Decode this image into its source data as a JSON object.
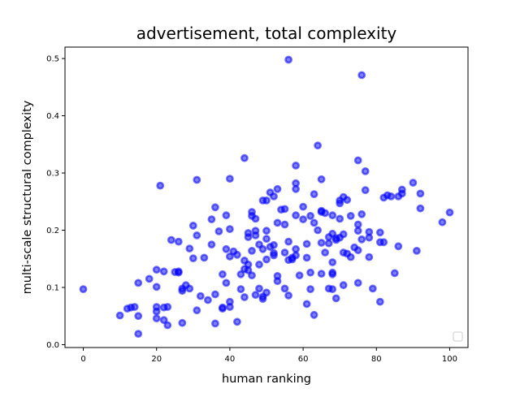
{
  "chart_data": {
    "type": "scatter",
    "title": "advertisement, total complexity",
    "xlabel": "human ranking",
    "ylabel": "multi-scale structural complexity",
    "xlim": [
      -5,
      105
    ],
    "ylim": [
      -0.005,
      0.52
    ],
    "x_ticks": [
      0,
      20,
      40,
      60,
      80,
      100
    ],
    "y_ticks": [
      0.0,
      0.1,
      0.2,
      0.3,
      0.4,
      0.5
    ],
    "x_tick_labels": [
      "0",
      "20",
      "40",
      "60",
      "80",
      "100"
    ],
    "y_tick_labels": [
      "0.0",
      "0.1",
      "0.2",
      "0.3",
      "0.4",
      "0.5"
    ],
    "grid": false,
    "legend": "empty box, bottom-right",
    "marker_color": "#0000ff",
    "points": [
      [
        0,
        0.097
      ],
      [
        10,
        0.051
      ],
      [
        12,
        0.063
      ],
      [
        13,
        0.065
      ],
      [
        14,
        0.066
      ],
      [
        15,
        0.05
      ],
      [
        15,
        0.019
      ],
      [
        15,
        0.108
      ],
      [
        18,
        0.115
      ],
      [
        20,
        0.131
      ],
      [
        20,
        0.101
      ],
      [
        20,
        0.066
      ],
      [
        20,
        0.058
      ],
      [
        20,
        0.046
      ],
      [
        21,
        0.278
      ],
      [
        22,
        0.128
      ],
      [
        22,
        0.043
      ],
      [
        22,
        0.065
      ],
      [
        23,
        0.034
      ],
      [
        23,
        0.066
      ],
      [
        24,
        0.183
      ],
      [
        25,
        0.127
      ],
      [
        26,
        0.128
      ],
      [
        26,
        0.126
      ],
      [
        26,
        0.18
      ],
      [
        27,
        0.098
      ],
      [
        27,
        0.038
      ],
      [
        27,
        0.094
      ],
      [
        28,
        0.104
      ],
      [
        29,
        0.098
      ],
      [
        29,
        0.168
      ],
      [
        30,
        0.208
      ],
      [
        30,
        0.151
      ],
      [
        31,
        0.191
      ],
      [
        31,
        0.288
      ],
      [
        31,
        0.06
      ],
      [
        32,
        0.085
      ],
      [
        33,
        0.152
      ],
      [
        34,
        0.078
      ],
      [
        35,
        0.175
      ],
      [
        35,
        0.219
      ],
      [
        36,
        0.24
      ],
      [
        36,
        0.088
      ],
      [
        36,
        0.037
      ],
      [
        37,
        0.198
      ],
      [
        38,
        0.123
      ],
      [
        38,
        0.065
      ],
      [
        38,
        0.063
      ],
      [
        39,
        0.226
      ],
      [
        39,
        0.108
      ],
      [
        39,
        0.167
      ],
      [
        40,
        0.29
      ],
      [
        40,
        0.154
      ],
      [
        40,
        0.066
      ],
      [
        40,
        0.075
      ],
      [
        40,
        0.202
      ],
      [
        41,
        0.163
      ],
      [
        42,
        0.04
      ],
      [
        42,
        0.157
      ],
      [
        43,
        0.097
      ],
      [
        43,
        0.123
      ],
      [
        44,
        0.326
      ],
      [
        44,
        0.132
      ],
      [
        44,
        0.083
      ],
      [
        44,
        0.147
      ],
      [
        45,
        0.195
      ],
      [
        45,
        0.188
      ],
      [
        45,
        0.14
      ],
      [
        45,
        0.13
      ],
      [
        46,
        0.232
      ],
      [
        46,
        0.225
      ],
      [
        46,
        0.164
      ],
      [
        46,
        0.121
      ],
      [
        47,
        0.22
      ],
      [
        47,
        0.199
      ],
      [
        47,
        0.191
      ],
      [
        47,
        0.087
      ],
      [
        48,
        0.175
      ],
      [
        48,
        0.098
      ],
      [
        48,
        0.14
      ],
      [
        49,
        0.252
      ],
      [
        49,
        0.084
      ],
      [
        49,
        0.08
      ],
      [
        49,
        0.167
      ],
      [
        50,
        0.252
      ],
      [
        50,
        0.199
      ],
      [
        50,
        0.185
      ],
      [
        50,
        0.149
      ],
      [
        50,
        0.091
      ],
      [
        51,
        0.266
      ],
      [
        51,
        0.171
      ],
      [
        52,
        0.259
      ],
      [
        52,
        0.174
      ],
      [
        52,
        0.16
      ],
      [
        52,
        0.156
      ],
      [
        53,
        0.213
      ],
      [
        53,
        0.272
      ],
      [
        53,
        0.12
      ],
      [
        53,
        0.111
      ],
      [
        54,
        0.236
      ],
      [
        55,
        0.237
      ],
      [
        55,
        0.21
      ],
      [
        55,
        0.161
      ],
      [
        55,
        0.098
      ],
      [
        56,
        0.498
      ],
      [
        56,
        0.18
      ],
      [
        56,
        0.148
      ],
      [
        56,
        0.086
      ],
      [
        57,
        0.152
      ],
      [
        57,
        0.149
      ],
      [
        58,
        0.313
      ],
      [
        58,
        0.282
      ],
      [
        58,
        0.272
      ],
      [
        58,
        0.226
      ],
      [
        58,
        0.167
      ],
      [
        58,
        0.156
      ],
      [
        59,
        0.121
      ],
      [
        60,
        0.241
      ],
      [
        60,
        0.219
      ],
      [
        61,
        0.176
      ],
      [
        61,
        0.152
      ],
      [
        61,
        0.071
      ],
      [
        62,
        0.225
      ],
      [
        62,
        0.126
      ],
      [
        62,
        0.097
      ],
      [
        63,
        0.263
      ],
      [
        63,
        0.213
      ],
      [
        63,
        0.052
      ],
      [
        64,
        0.348
      ],
      [
        64,
        0.2
      ],
      [
        65,
        0.289
      ],
      [
        65,
        0.234
      ],
      [
        65,
        0.232
      ],
      [
        65,
        0.178
      ],
      [
        65,
        0.124
      ],
      [
        66,
        0.23
      ],
      [
        66,
        0.161
      ],
      [
        67,
        0.188
      ],
      [
        67,
        0.177
      ],
      [
        67,
        0.098
      ],
      [
        68,
        0.226
      ],
      [
        68,
        0.194
      ],
      [
        68,
        0.144
      ],
      [
        68,
        0.126
      ],
      [
        68,
        0.123
      ],
      [
        68,
        0.097
      ],
      [
        69,
        0.183
      ],
      [
        69,
        0.186
      ],
      [
        69,
        0.081
      ],
      [
        70,
        0.252
      ],
      [
        70,
        0.247
      ],
      [
        70,
        0.22
      ],
      [
        70,
        0.187
      ],
      [
        71,
        0.258
      ],
      [
        71,
        0.193
      ],
      [
        71,
        0.161
      ],
      [
        71,
        0.104
      ],
      [
        72,
        0.253
      ],
      [
        72,
        0.159
      ],
      [
        73,
        0.225
      ],
      [
        73,
        0.153
      ],
      [
        74,
        0.17
      ],
      [
        75,
        0.322
      ],
      [
        75,
        0.21
      ],
      [
        75,
        0.199
      ],
      [
        75,
        0.165
      ],
      [
        75,
        0.108
      ],
      [
        76,
        0.471
      ],
      [
        76,
        0.228
      ],
      [
        76,
        0.184
      ],
      [
        77,
        0.303
      ],
      [
        77,
        0.27
      ],
      [
        78,
        0.197
      ],
      [
        78,
        0.187
      ],
      [
        78,
        0.153
      ],
      [
        79,
        0.098
      ],
      [
        81,
        0.196
      ],
      [
        81,
        0.179
      ],
      [
        81,
        0.075
      ],
      [
        82,
        0.257
      ],
      [
        82,
        0.179
      ],
      [
        83,
        0.261
      ],
      [
        84,
        0.259
      ],
      [
        85,
        0.125
      ],
      [
        86,
        0.259
      ],
      [
        86,
        0.172
      ],
      [
        87,
        0.271
      ],
      [
        87,
        0.264
      ],
      [
        90,
        0.283
      ],
      [
        91,
        0.164
      ],
      [
        92,
        0.264
      ],
      [
        92,
        0.238
      ],
      [
        98,
        0.214
      ],
      [
        100,
        0.231
      ]
    ]
  }
}
